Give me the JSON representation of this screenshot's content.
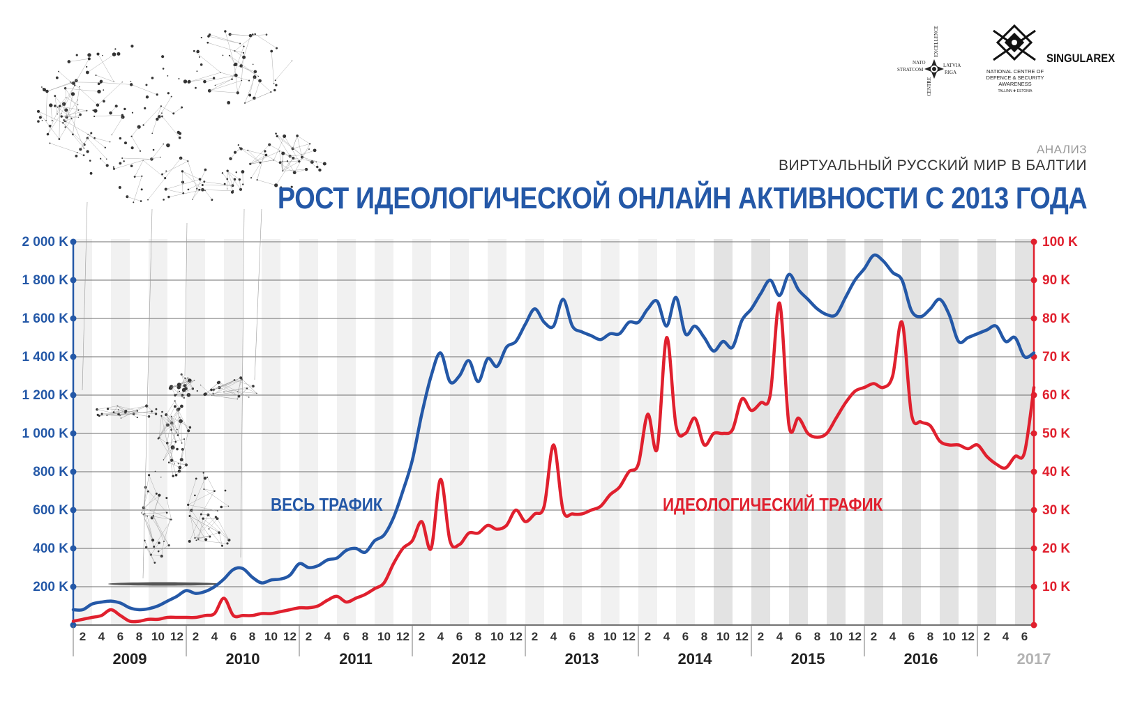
{
  "header": {
    "kicker": "АНАЛИЗ",
    "subtitle": "ВИРТУАЛЬНЫЙ РУССКИЙ МИР В БАЛТИИ",
    "title": "РОСТ ИДЕОЛОГИЧЕСКОЙ ОНЛАЙН АКТИВНОСТИ С 2013 ГОДА"
  },
  "logos": {
    "nato_words": [
      "NATO",
      "STRATCOM",
      "CENTRE",
      "EXCELLENCE",
      "LATVIA",
      "RIGA"
    ],
    "ncdsa": "NATIONAL CENTRE OF DEFENCE & SECURITY AWARENESS",
    "ncdsa_place": "TALLINN ✚ ESTONIA",
    "singularex": "SINGULAREX"
  },
  "colors": {
    "blue": "#2458a7",
    "red": "#e0202e",
    "grey": "#b3b3b3",
    "band": "#ececec"
  },
  "chart_data": {
    "type": "line",
    "x_unit": "month",
    "x_tick_labels": [
      "2",
      "4",
      "6",
      "8",
      "10",
      "12",
      "2",
      "4",
      "6",
      "8",
      "10",
      "12",
      "2",
      "4",
      "6",
      "8",
      "10",
      "12",
      "2",
      "4",
      "6",
      "8",
      "10",
      "12",
      "2",
      "4",
      "6",
      "8",
      "10",
      "12",
      "2",
      "4",
      "6",
      "8",
      "10",
      "12",
      "2",
      "4",
      "6",
      "8",
      "10",
      "12",
      "2",
      "4",
      "6",
      "8",
      "10",
      "12",
      "2",
      "4",
      "6"
    ],
    "years": [
      "2009",
      "2010",
      "2011",
      "2012",
      "2013",
      "2014",
      "2015",
      "2016",
      "2017"
    ],
    "y_left": {
      "ticks": [
        "200 K",
        "400 K",
        "600 K",
        "800 K",
        "1 000 K",
        "1 200 K",
        "1 400 K",
        "1 600 K",
        "1 800 K",
        "2 000 K"
      ],
      "lim": [
        0,
        2000000
      ]
    },
    "y_right": {
      "ticks": [
        "10 K",
        "20 K",
        "30 K",
        "40 K",
        "50 K",
        "60 K",
        "70 K",
        "80 K",
        "90 K",
        "100 K"
      ],
      "lim": [
        0,
        100000
      ]
    },
    "annotations": {
      "blue": "ВЕСЬ ТРАФИК",
      "red": "ИДЕОЛОГИЧЕСКИЙ ТРАФИК"
    },
    "series": [
      {
        "axis": "left",
        "values": [
          80000,
          80000,
          110000,
          120000,
          125000,
          115000,
          90000,
          80000,
          85000,
          100000,
          125000,
          150000,
          180000,
          165000,
          175000,
          200000,
          240000,
          290000,
          295000,
          250000,
          220000,
          235000,
          240000,
          260000,
          320000,
          300000,
          310000,
          340000,
          350000,
          390000,
          400000,
          380000,
          440000,
          470000,
          560000,
          700000,
          860000,
          1100000,
          1300000,
          1420000,
          1270000,
          1300000,
          1380000,
          1270000,
          1390000,
          1350000,
          1450000,
          1480000,
          1570000,
          1650000,
          1580000,
          1560000,
          1700000,
          1560000,
          1530000,
          1510000,
          1490000,
          1520000,
          1520000,
          1580000,
          1580000,
          1650000,
          1690000,
          1560000,
          1710000,
          1520000,
          1560000,
          1500000,
          1430000,
          1480000,
          1450000,
          1590000,
          1650000,
          1730000,
          1800000,
          1720000,
          1830000,
          1750000,
          1700000,
          1650000,
          1620000,
          1620000,
          1710000,
          1800000,
          1860000,
          1930000,
          1900000,
          1840000,
          1800000,
          1640000,
          1610000,
          1650000,
          1700000,
          1620000,
          1480000,
          1500000,
          1520000,
          1540000,
          1560000,
          1480000,
          1500000,
          1400000,
          1420000
        ]
      },
      {
        "axis": "right",
        "values": [
          1000,
          1500,
          2000,
          2500,
          4000,
          2500,
          1000,
          1000,
          1500,
          1500,
          2000,
          2000,
          2000,
          2000,
          2500,
          3000,
          7000,
          2500,
          2500,
          2500,
          3000,
          3000,
          3500,
          4000,
          4500,
          4500,
          5000,
          6500,
          7500,
          6000,
          7000,
          8000,
          9500,
          11000,
          16000,
          20000,
          22000,
          27000,
          20000,
          38000,
          22000,
          21000,
          24000,
          24000,
          26000,
          25000,
          26000,
          30000,
          27000,
          29000,
          31000,
          47000,
          30000,
          29000,
          29000,
          30000,
          31000,
          34000,
          36000,
          40000,
          42000,
          55000,
          46000,
          75000,
          52000,
          50000,
          54000,
          47000,
          50000,
          50000,
          51000,
          59000,
          56000,
          58000,
          60000,
          84000,
          52000,
          54000,
          50000,
          49000,
          50000,
          54000,
          58000,
          61000,
          62000,
          63000,
          62000,
          65000,
          79000,
          55000,
          53000,
          52000,
          48000,
          47000,
          47000,
          46000,
          47000,
          44000,
          42000,
          41000,
          44000,
          45000,
          62000
        ]
      }
    ]
  }
}
